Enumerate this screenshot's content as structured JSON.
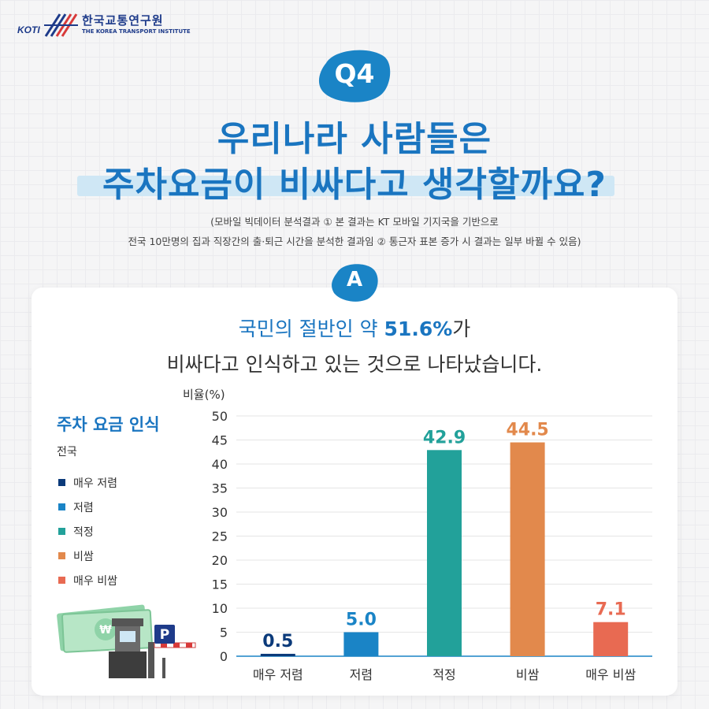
{
  "brand": {
    "abbr": "KOTI",
    "name_ko": "한국교통연구원",
    "name_en": "THE KOREA TRANSPORT INSTITUTE"
  },
  "question_badge": "Q4",
  "title_lines": [
    "우리나라 사람들은",
    "주차요금이 비싸다고 생각할까요?"
  ],
  "notes": [
    "(모바일 빅데이터 분석결과 ① 본 결과는 KT 모바일 기지국을 기반으로",
    "전국 10만명의 집과 직장간의 출·퇴근 시간을 분석한 결과임 ② 통근자 표본 증가 시 결과는 일부 바뀔 수 있음)"
  ],
  "answer_badge": "A",
  "headline": {
    "prefix": "국민의 절반인 약 ",
    "value": "51.6%",
    "suffix": "가",
    "line2": "비싸다고 인식하고 있는 것으로 나타났습니다."
  },
  "legend": {
    "title": "주차 요금 인식",
    "subtitle": "전국",
    "items": [
      {
        "label": "매우 저렴",
        "color": "#0b3a7a"
      },
      {
        "label": "저렴",
        "color": "#1a84c6"
      },
      {
        "label": "적정",
        "color": "#22a19a"
      },
      {
        "label": "비쌈",
        "color": "#e2894c"
      },
      {
        "label": "매우 비쌈",
        "color": "#e86a52"
      }
    ]
  },
  "colors": {
    "brand_blue": "#1a75c0",
    "highlight": "#cfe7f5",
    "badge_blue": "#1a84c6",
    "axis": "#1a84c6",
    "grid": "#e5e5e5"
  },
  "icons": [
    "koti-logo-icon",
    "cash-icon",
    "parking-sign-icon",
    "parking-gate-icon"
  ],
  "chart_data": {
    "type": "bar",
    "ylabel": "비율(%)",
    "xlabel": "",
    "ylim": [
      0,
      50
    ],
    "yticks": [
      0,
      5,
      10,
      15,
      20,
      25,
      30,
      35,
      40,
      45,
      50
    ],
    "grid": true,
    "categories": [
      "매우 저렴",
      "저렴",
      "적정",
      "비쌈",
      "매우 비쌈"
    ],
    "values": [
      0.5,
      5.0,
      42.9,
      44.5,
      7.1
    ],
    "value_labels": [
      "0.5",
      "5.0",
      "42.9",
      "44.5",
      "7.1"
    ],
    "colors": [
      "#0b3a7a",
      "#1a84c6",
      "#22a19a",
      "#e2894c",
      "#e86a52"
    ]
  }
}
